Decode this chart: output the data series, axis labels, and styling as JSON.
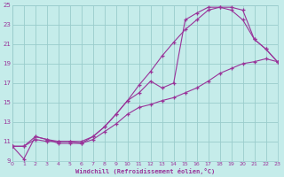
{
  "bg_color": "#c5ecea",
  "grid_color": "#99cccc",
  "line_color": "#993399",
  "xlim": [
    0,
    23
  ],
  "ylim": [
    9,
    25
  ],
  "xticks": [
    0,
    1,
    2,
    3,
    4,
    5,
    6,
    7,
    8,
    9,
    10,
    11,
    12,
    13,
    14,
    15,
    16,
    17,
    18,
    19,
    20,
    21,
    22,
    23
  ],
  "yticks": [
    9,
    11,
    13,
    15,
    17,
    19,
    21,
    23,
    25
  ],
  "xlabel": "Windchill (Refroidissement éolien,°C)",
  "curve1_x": [
    0,
    1,
    2,
    3,
    4,
    5,
    6,
    7,
    8,
    9,
    10,
    11,
    12,
    13,
    14,
    15,
    16,
    17,
    18,
    19,
    20,
    21,
    22,
    23
  ],
  "curve1_y": [
    10.5,
    9.2,
    11.5,
    11.2,
    10.8,
    10.8,
    10.8,
    11.5,
    12.5,
    13.8,
    15.2,
    16.8,
    18.2,
    19.8,
    21.2,
    22.5,
    23.5,
    24.5,
    24.8,
    24.8,
    24.5,
    21.5,
    20.5,
    19.2
  ],
  "curve2_x": [
    0,
    1,
    2,
    3,
    4,
    5,
    6,
    7,
    8,
    9,
    10,
    11,
    12,
    13,
    14,
    15,
    16,
    17,
    18,
    19,
    20,
    21,
    22,
    23
  ],
  "curve2_y": [
    10.5,
    10.5,
    11.5,
    11.2,
    11.0,
    11.0,
    11.0,
    11.5,
    12.5,
    13.8,
    15.2,
    16.0,
    17.2,
    16.5,
    17.0,
    23.5,
    24.2,
    24.8,
    24.8,
    24.5,
    23.5,
    21.5,
    20.5,
    19.2
  ],
  "curve3_x": [
    0,
    1,
    2,
    3,
    4,
    5,
    6,
    7,
    8,
    9,
    10,
    11,
    12,
    13,
    14,
    15,
    16,
    17,
    18,
    19,
    20,
    21,
    22,
    23
  ],
  "curve3_y": [
    10.5,
    10.5,
    11.2,
    11.0,
    11.0,
    11.0,
    10.8,
    11.2,
    12.0,
    12.8,
    13.8,
    14.5,
    14.8,
    15.2,
    15.5,
    16.0,
    16.5,
    17.2,
    18.0,
    18.5,
    19.0,
    19.2,
    19.5,
    19.2
  ]
}
